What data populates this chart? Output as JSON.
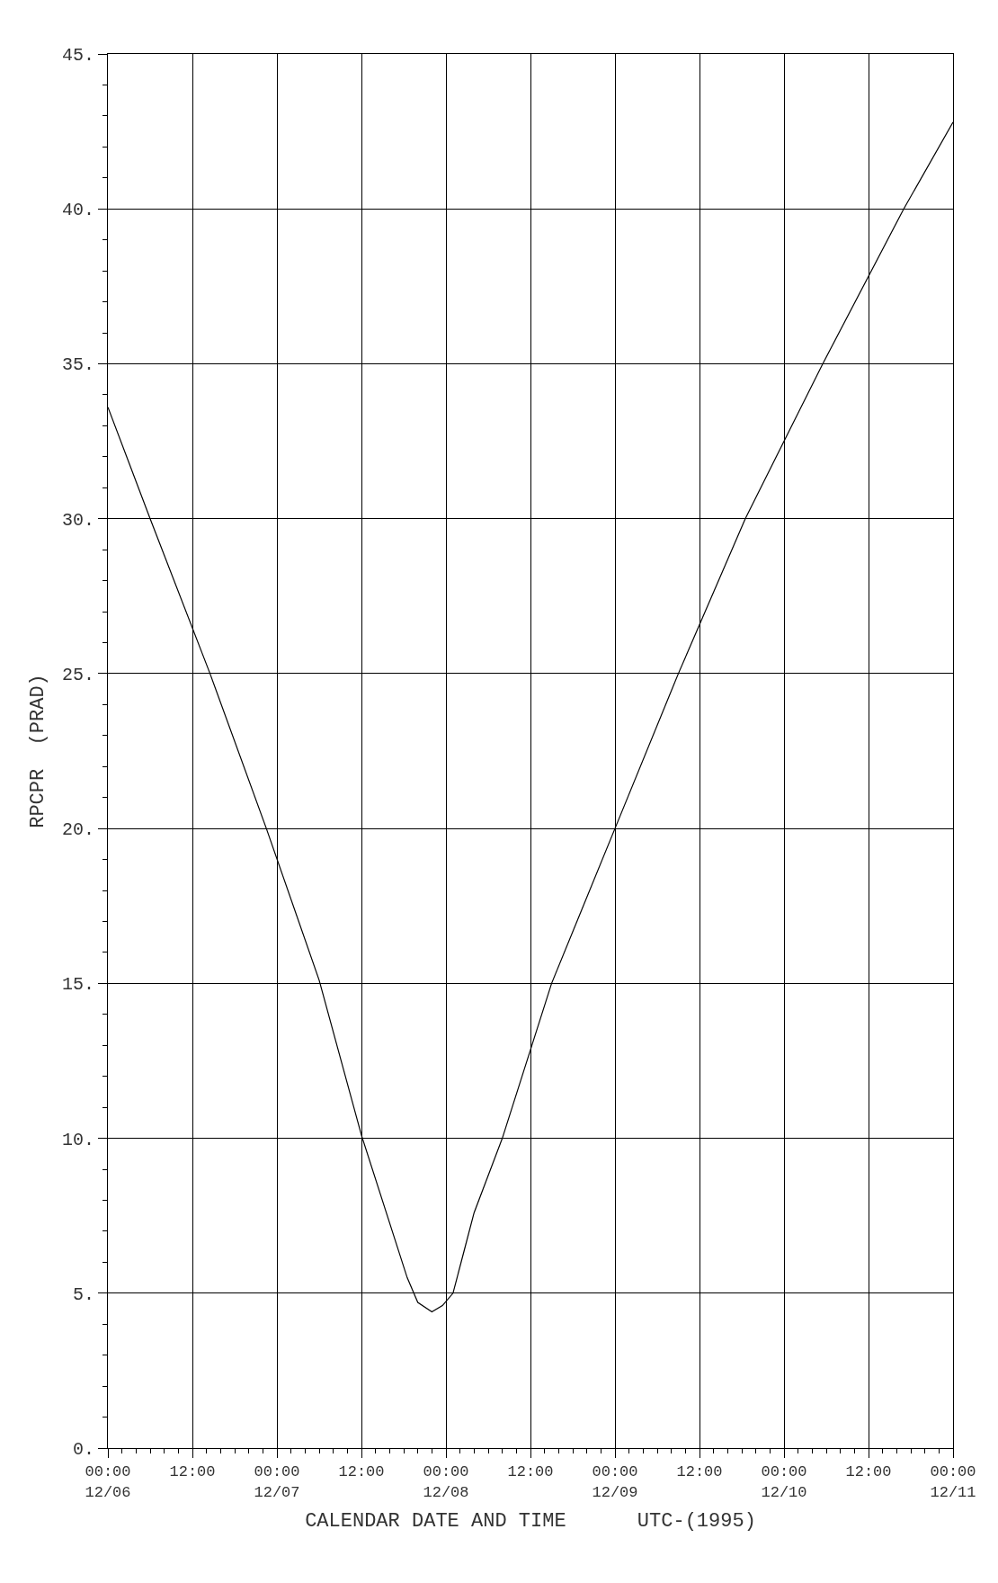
{
  "chart_data": {
    "type": "line",
    "xlabel": "CALENDAR DATE AND TIME      UTC-(1995)",
    "ylabel": "RPCPR  (PRAD)",
    "x": [
      "1995-12-06T00:00",
      "1995-12-06T06:00",
      "1995-12-06T14:30",
      "1995-12-06T22:30",
      "1995-12-07T06:00",
      "1995-12-07T12:00",
      "1995-12-07T18:30",
      "1995-12-07T20:00",
      "1995-12-07T22:00",
      "1995-12-07T23:30",
      "1995-12-08T01:00",
      "1995-12-08T02:30",
      "1995-12-08T04:00",
      "1995-12-08T08:00",
      "1995-12-08T15:00",
      "1995-12-09T00:00",
      "1995-12-09T09:00",
      "1995-12-09T18:30",
      "1995-12-10T05:30",
      "1995-12-10T17:00",
      "1995-12-11T00:00"
    ],
    "series": [
      {
        "color": "#000000",
        "values": [
          33.6,
          30.0,
          25.0,
          20.0,
          15.1,
          10.1,
          5.5,
          4.7,
          4.4,
          4.6,
          5.0,
          6.3,
          7.6,
          10.0,
          15.0,
          20.0,
          25.0,
          30.0,
          35.0,
          40.0,
          42.8
        ]
      }
    ],
    "xlim": [
      "1995-12-06T00:00",
      "1995-12-11T00:00"
    ],
    "xticks": [
      {
        "value": "1995-12-06T00:00",
        "label": "00:00 12/06"
      },
      {
        "value": "1995-12-06T12:00",
        "label": "12:00"
      },
      {
        "value": "1995-12-07T00:00",
        "label": "00:00 12/07"
      },
      {
        "value": "1995-12-07T12:00",
        "label": "12:00"
      },
      {
        "value": "1995-12-08T00:00",
        "label": "00:00 12/08"
      },
      {
        "value": "1995-12-08T12:00",
        "label": "12:00"
      },
      {
        "value": "1995-12-09T00:00",
        "label": "00:00 12/09"
      },
      {
        "value": "1995-12-09T12:00",
        "label": "12:00"
      },
      {
        "value": "1995-12-10T00:00",
        "label": "00:00 12/10"
      },
      {
        "value": "1995-12-10T12:00",
        "label": "12:00"
      },
      {
        "value": "1995-12-11T00:00",
        "label": "00:00 12/11"
      }
    ],
    "ylim": [
      0,
      45
    ],
    "yticks": [
      {
        "value": 0,
        "label": "0."
      },
      {
        "value": 5,
        "label": "5."
      },
      {
        "value": 10,
        "label": "10."
      },
      {
        "value": 15,
        "label": "15."
      },
      {
        "value": 20,
        "label": "20."
      },
      {
        "value": 25,
        "label": "25."
      },
      {
        "value": 30,
        "label": "30."
      },
      {
        "value": 35,
        "label": "35."
      },
      {
        "value": 40,
        "label": "40."
      },
      {
        "value": 45,
        "label": "45."
      }
    ],
    "grid": true,
    "marker": "none",
    "line_style": "solid"
  }
}
